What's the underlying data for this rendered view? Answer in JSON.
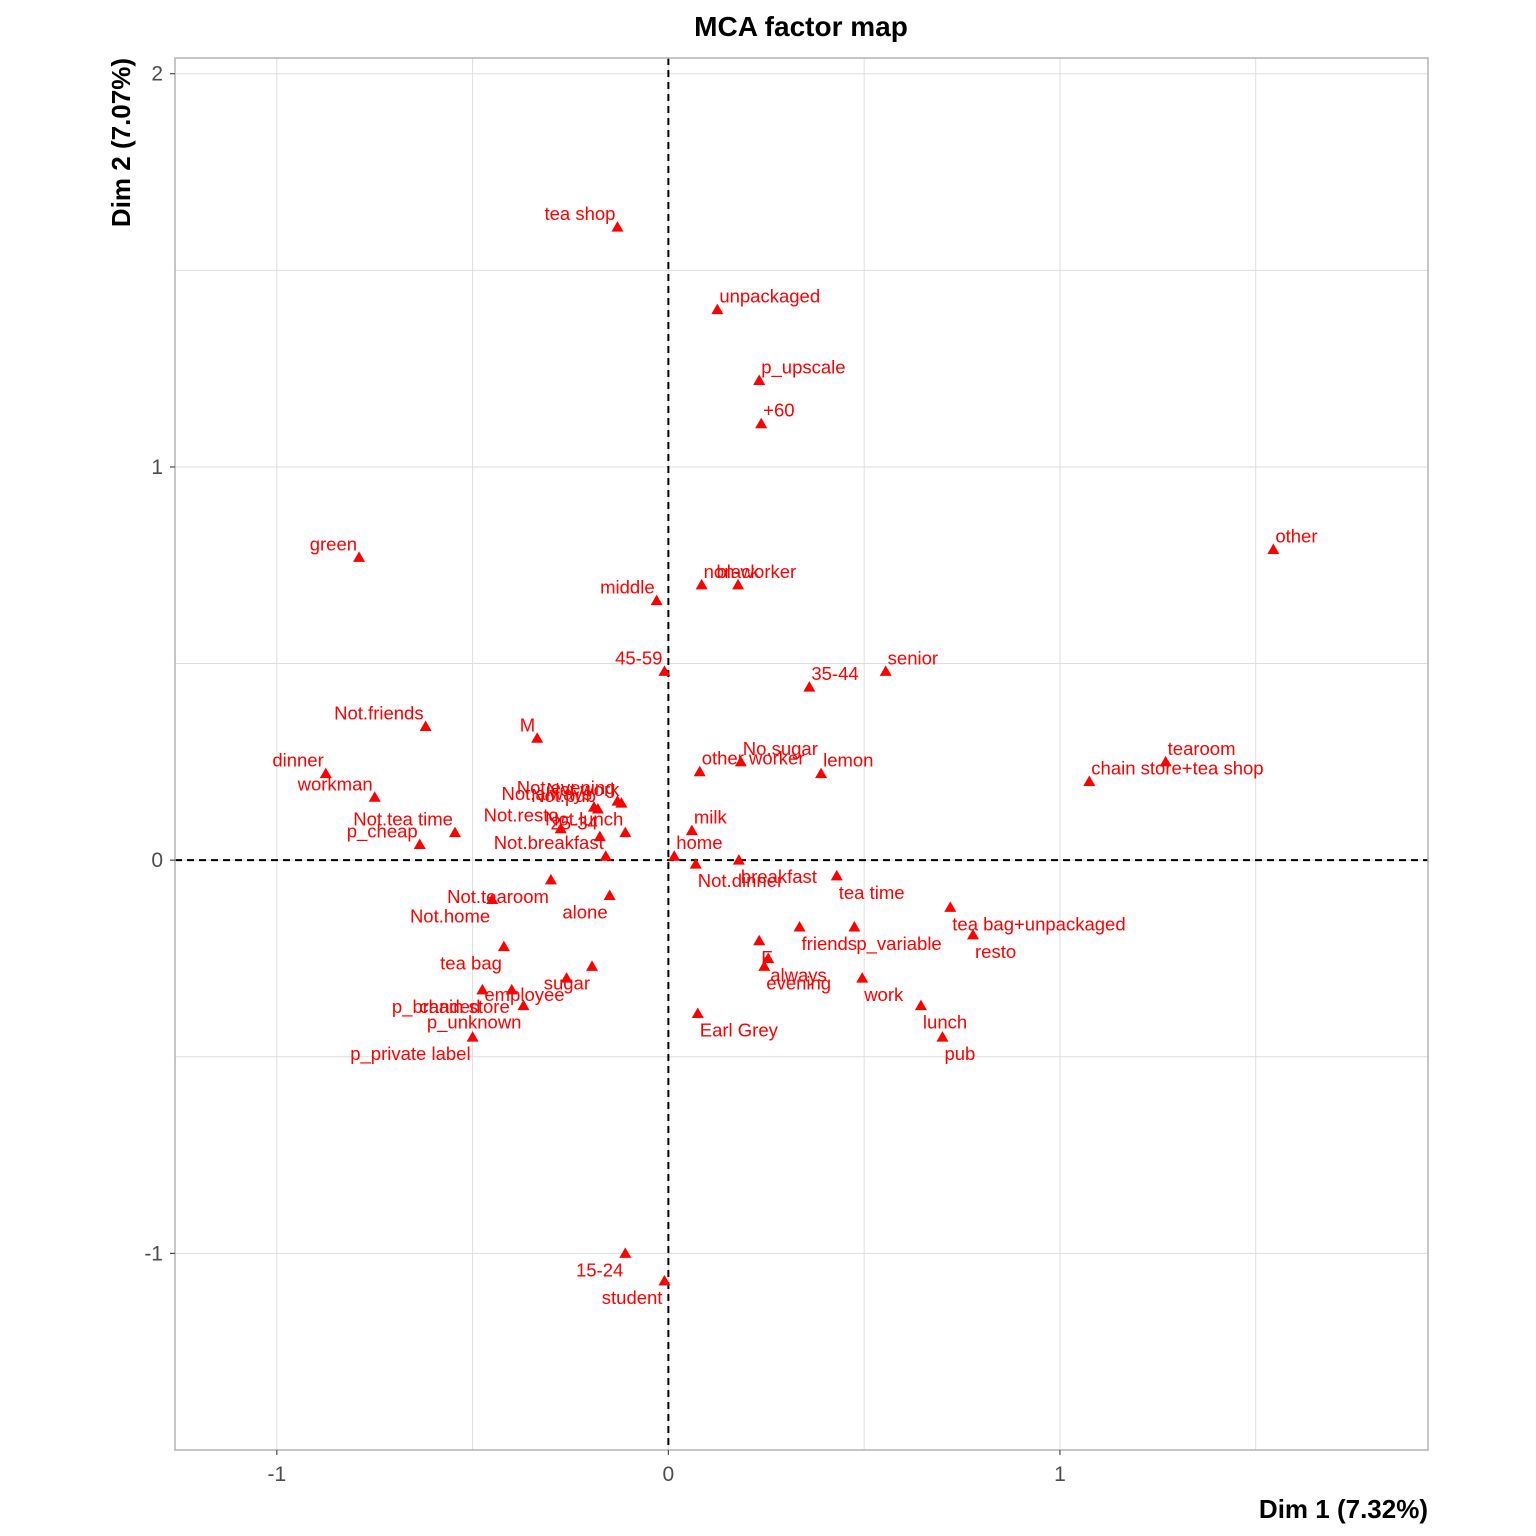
{
  "chart_data": {
    "type": "scatter",
    "title": "MCA factor map",
    "xlabel": "Dim 1 (7.32%)",
    "ylabel": "Dim 2 (7.07%)",
    "xlim": [
      -1.26,
      1.94
    ],
    "ylim": [
      -1.5,
      2.04
    ],
    "xticks": [
      {
        "v": -1,
        "label": "-1"
      },
      {
        "v": 0,
        "label": "0"
      },
      {
        "v": 1,
        "label": "1"
      }
    ],
    "yticks": [
      {
        "v": -1,
        "label": "-1"
      },
      {
        "v": 0,
        "label": "0"
      },
      {
        "v": 1,
        "label": "1"
      },
      {
        "v": 2,
        "label": "2"
      }
    ],
    "grid": true,
    "reference_lines": {
      "x": 0,
      "y": 0,
      "style": "dashed"
    },
    "point_color": "#ff0000",
    "marker": "triangle",
    "points": [
      {
        "label": "tea shop",
        "x": -0.13,
        "y": 1.61,
        "pos": "left-top"
      },
      {
        "label": "unpackaged",
        "x": 0.125,
        "y": 1.4,
        "pos": "right-top"
      },
      {
        "label": "p_upscale",
        "x": 0.232,
        "y": 1.22,
        "pos": "right-top"
      },
      {
        "label": "+60",
        "x": 0.237,
        "y": 1.11,
        "pos": "right-top"
      },
      {
        "label": "green",
        "x": -0.79,
        "y": 0.77,
        "pos": "left-top"
      },
      {
        "label": "other",
        "x": 1.545,
        "y": 0.79,
        "pos": "right-top"
      },
      {
        "label": "non-worker",
        "x": 0.085,
        "y": 0.7,
        "pos": "right-top"
      },
      {
        "label": "black",
        "x": 0.178,
        "y": 0.7,
        "pos": "center-top"
      },
      {
        "label": "middle",
        "x": -0.03,
        "y": 0.66,
        "pos": "left-top"
      },
      {
        "label": "45-59",
        "x": -0.01,
        "y": 0.48,
        "pos": "left-top"
      },
      {
        "label": "senior",
        "x": 0.555,
        "y": 0.48,
        "pos": "right-top"
      },
      {
        "label": "35-44",
        "x": 0.36,
        "y": 0.44,
        "pos": "right-top"
      },
      {
        "label": "Not.friends",
        "x": -0.62,
        "y": 0.34,
        "pos": "left-top"
      },
      {
        "label": "M",
        "x": -0.335,
        "y": 0.31,
        "pos": "left-top"
      },
      {
        "label": "No.sugar",
        "x": 0.185,
        "y": 0.25,
        "pos": "right-top"
      },
      {
        "label": "tearoom",
        "x": 1.27,
        "y": 0.25,
        "pos": "right-top"
      },
      {
        "label": "other worker",
        "x": 0.08,
        "y": 0.225,
        "pos": "right-top"
      },
      {
        "label": "lemon",
        "x": 0.39,
        "y": 0.22,
        "pos": "right-top"
      },
      {
        "label": "dinner",
        "x": -0.875,
        "y": 0.22,
        "pos": "left-top"
      },
      {
        "label": "chain store+tea shop",
        "x": 1.075,
        "y": 0.2,
        "pos": "right-top"
      },
      {
        "label": "workman",
        "x": -0.75,
        "y": 0.16,
        "pos": "left-top"
      },
      {
        "label": "Not.evening",
        "x": -0.13,
        "y": 0.15,
        "pos": "left-top"
      },
      {
        "label": "Not.work",
        "x": -0.12,
        "y": 0.145,
        "pos": "left-top"
      },
      {
        "label": "Not.always",
        "x": -0.19,
        "y": 0.135,
        "pos": "left-top"
      },
      {
        "label": "Not.pub",
        "x": -0.18,
        "y": 0.13,
        "pos": "left-top"
      },
      {
        "label": "Not.tea time",
        "x": -0.545,
        "y": 0.07,
        "pos": "left-top"
      },
      {
        "label": "Not.resto",
        "x": -0.275,
        "y": 0.08,
        "pos": "left-top"
      },
      {
        "label": "25-34",
        "x": -0.175,
        "y": 0.06,
        "pos": "left-top"
      },
      {
        "label": "Not.lunch",
        "x": -0.11,
        "y": 0.07,
        "pos": "left-top"
      },
      {
        "label": "milk",
        "x": 0.06,
        "y": 0.075,
        "pos": "right-top"
      },
      {
        "label": "p_cheap",
        "x": -0.635,
        "y": 0.04,
        "pos": "left-top"
      },
      {
        "label": "Not.breakfast",
        "x": -0.16,
        "y": 0.01,
        "pos": "left-top"
      },
      {
        "label": "home",
        "x": 0.015,
        "y": 0.01,
        "pos": "right-top"
      },
      {
        "label": "breakfast",
        "x": 0.18,
        "y": 0.0,
        "pos": "right-bottom"
      },
      {
        "label": "Not.dinner",
        "x": 0.07,
        "y": -0.01,
        "pos": "right-bottom"
      },
      {
        "label": "tea time",
        "x": 0.43,
        "y": -0.04,
        "pos": "right-bottom"
      },
      {
        "label": "Not.tearoom",
        "x": -0.3,
        "y": -0.05,
        "pos": "left-bottom"
      },
      {
        "label": "alone",
        "x": -0.15,
        "y": -0.09,
        "pos": "left-bottom"
      },
      {
        "label": "Not.home",
        "x": -0.45,
        "y": -0.1,
        "pos": "left-bottom"
      },
      {
        "label": "tea bag+unpackaged",
        "x": 0.72,
        "y": -0.12,
        "pos": "right-bottom"
      },
      {
        "label": "friends",
        "x": 0.335,
        "y": -0.17,
        "pos": "right-bottom"
      },
      {
        "label": "p_variable",
        "x": 0.475,
        "y": -0.17,
        "pos": "right-bottom"
      },
      {
        "label": "resto",
        "x": 0.778,
        "y": -0.19,
        "pos": "right-bottom"
      },
      {
        "label": "tea bag",
        "x": -0.42,
        "y": -0.22,
        "pos": "left-bottom"
      },
      {
        "label": "F",
        "x": 0.232,
        "y": -0.205,
        "pos": "right-bottom"
      },
      {
        "label": "always",
        "x": 0.255,
        "y": -0.25,
        "pos": "right-bottom"
      },
      {
        "label": "evening",
        "x": 0.245,
        "y": -0.27,
        "pos": "right-bottom"
      },
      {
        "label": "sugar",
        "x": -0.195,
        "y": -0.27,
        "pos": "left-bottom"
      },
      {
        "label": "work",
        "x": 0.495,
        "y": -0.3,
        "pos": "right-bottom"
      },
      {
        "label": "employee",
        "x": -0.26,
        "y": -0.3,
        "pos": "left-bottom"
      },
      {
        "label": "chain store",
        "x": -0.4,
        "y": -0.33,
        "pos": "left-bottom"
      },
      {
        "label": "p_branded",
        "x": -0.475,
        "y": -0.33,
        "pos": "left-bottom"
      },
      {
        "label": "lunch",
        "x": 0.645,
        "y": -0.37,
        "pos": "right-bottom"
      },
      {
        "label": "p_unknown",
        "x": -0.37,
        "y": -0.37,
        "pos": "left-bottom"
      },
      {
        "label": "Earl Grey",
        "x": 0.075,
        "y": -0.39,
        "pos": "right-bottom"
      },
      {
        "label": "pub",
        "x": 0.7,
        "y": -0.45,
        "pos": "right-bottom"
      },
      {
        "label": "p_private label",
        "x": -0.5,
        "y": -0.45,
        "pos": "left-bottom"
      },
      {
        "label": "15-24",
        "x": -0.11,
        "y": -1.0,
        "pos": "left-bottom"
      },
      {
        "label": "student",
        "x": -0.01,
        "y": -1.07,
        "pos": "left-bottom"
      }
    ]
  }
}
